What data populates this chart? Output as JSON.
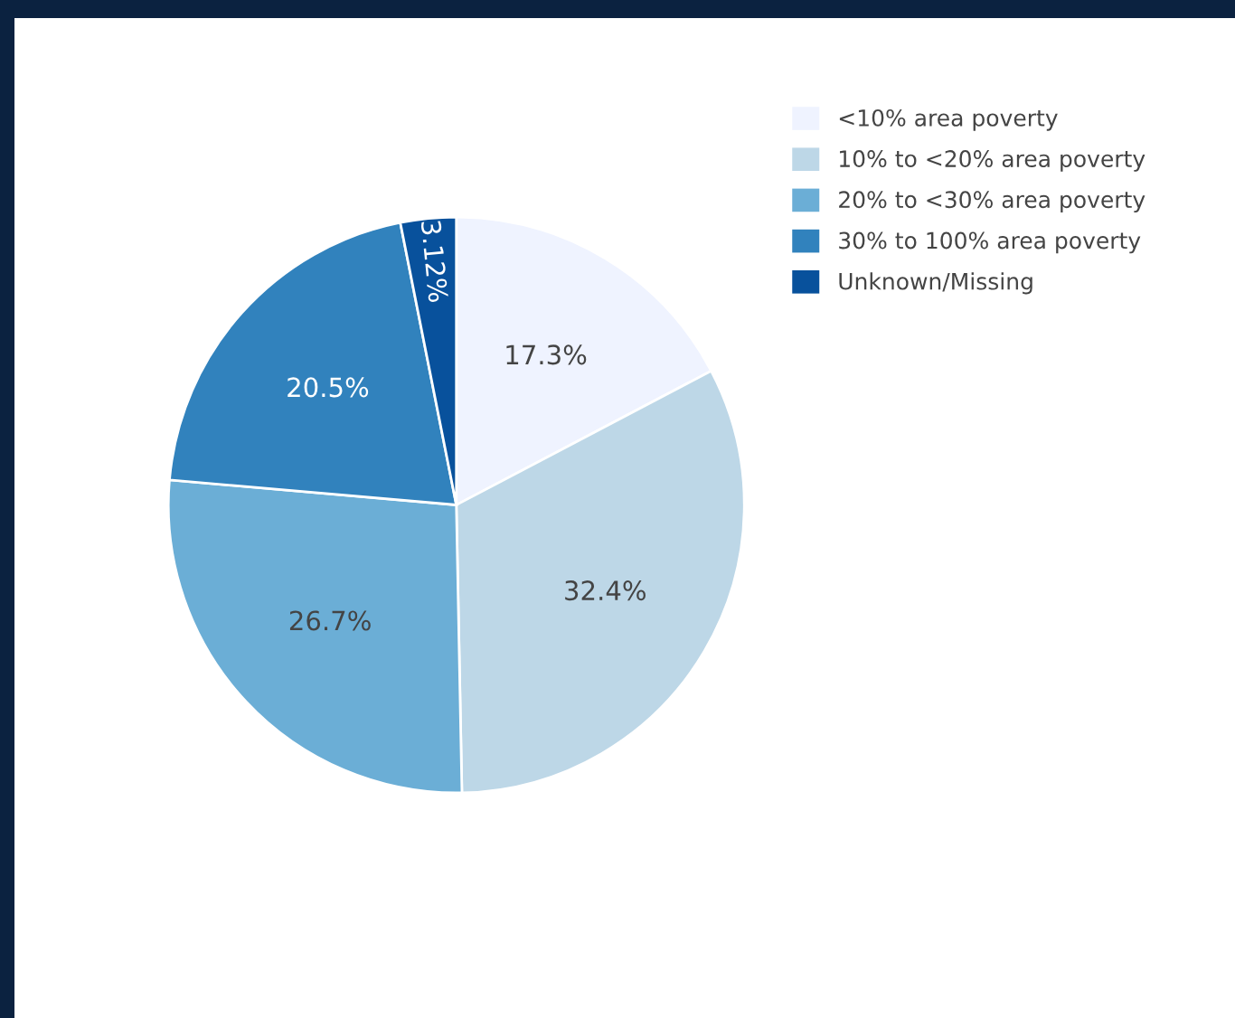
{
  "chart_data": {
    "type": "pie",
    "categories": [
      "<10% area poverty",
      "10% to <20% area poverty",
      "20% to <30% area poverty",
      "30% to 100% area poverty",
      "Unknown/Missing"
    ],
    "values": [
      17.3,
      32.4,
      26.7,
      20.5,
      3.12
    ],
    "colors": [
      "#eff3ff",
      "#bdd7e7",
      "#6baed6",
      "#3182bd",
      "#08519c"
    ],
    "value_labels": [
      "17.3%",
      "32.4%",
      "26.7%",
      "20.5%",
      "3.12%"
    ],
    "legend": "top right"
  }
}
